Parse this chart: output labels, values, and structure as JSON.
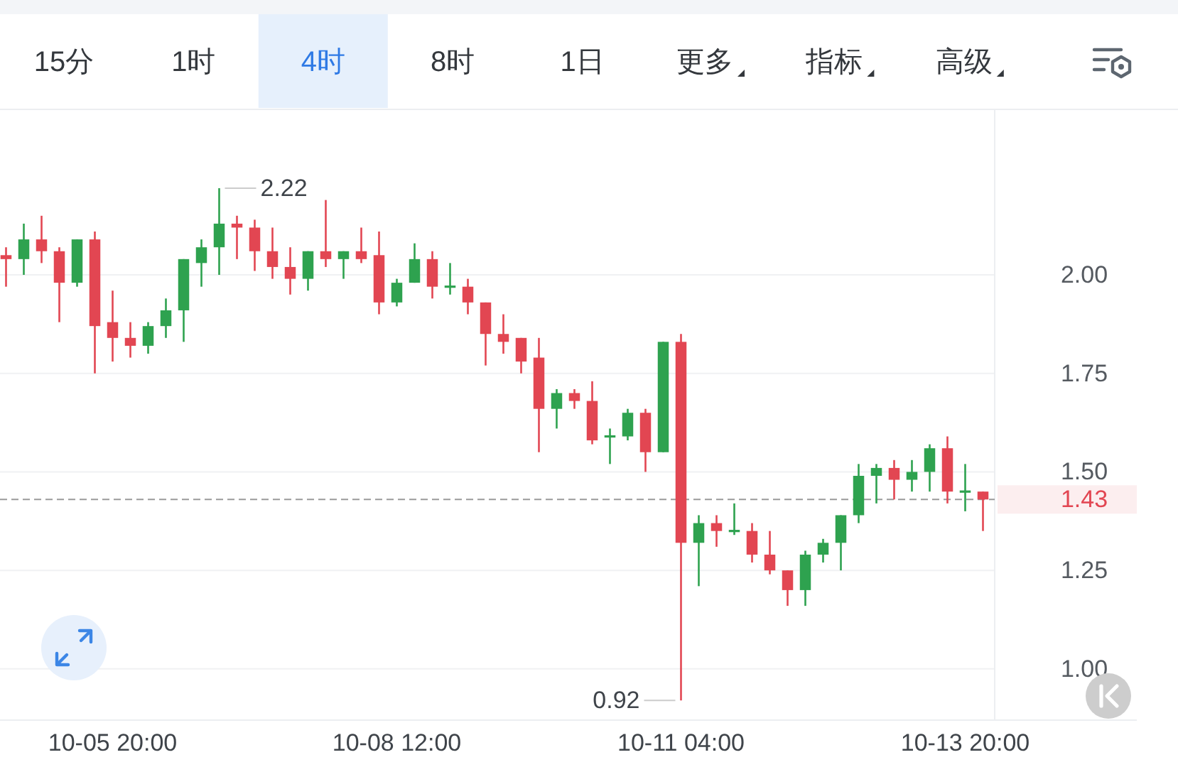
{
  "chart_data": {
    "type": "candlestick",
    "annotations": [
      "15分",
      "1时",
      "4时",
      "8时",
      "1日",
      "更多",
      "指标",
      "高级",
      "2.22",
      "0.92"
    ],
    "categories": [
      null,
      null,
      null,
      null,
      null,
      null,
      "10-05 20:00",
      null,
      null,
      null,
      null,
      null,
      null,
      null,
      null,
      null,
      null,
      null,
      null,
      null,
      null,
      null,
      "10-08 12:00",
      null,
      null,
      null,
      null,
      null,
      null,
      null,
      null,
      null,
      null,
      null,
      null,
      null,
      null,
      null,
      "10-11 04:00",
      null,
      null,
      null,
      null,
      null,
      null,
      null,
      null,
      null,
      null,
      null,
      null,
      null,
      null,
      null,
      "10-13 20:00",
      null
    ],
    "ohlc": [
      [
        2.05,
        2.07,
        1.97,
        2.04
      ],
      [
        2.04,
        2.13,
        2.0,
        2.09
      ],
      [
        2.09,
        2.15,
        2.03,
        2.06
      ],
      [
        2.06,
        2.07,
        1.88,
        1.98
      ],
      [
        1.98,
        2.09,
        1.97,
        2.09
      ],
      [
        2.09,
        2.11,
        1.75,
        1.87
      ],
      [
        1.88,
        1.96,
        1.78,
        1.84
      ],
      [
        1.84,
        1.88,
        1.79,
        1.82
      ],
      [
        1.82,
        1.88,
        1.8,
        1.87
      ],
      [
        1.87,
        1.94,
        1.84,
        1.91
      ],
      [
        1.91,
        2.04,
        1.83,
        2.04
      ],
      [
        2.03,
        2.09,
        1.97,
        2.07
      ],
      [
        2.07,
        2.22,
        2.0,
        2.13
      ],
      [
        2.13,
        2.15,
        2.04,
        2.12
      ],
      [
        2.12,
        2.14,
        2.01,
        2.06
      ],
      [
        2.06,
        2.12,
        1.99,
        2.02
      ],
      [
        2.02,
        2.07,
        1.95,
        1.99
      ],
      [
        1.99,
        2.06,
        1.96,
        2.06
      ],
      [
        2.06,
        2.19,
        2.02,
        2.04
      ],
      [
        2.04,
        2.06,
        1.99,
        2.06
      ],
      [
        2.06,
        2.12,
        2.03,
        2.04
      ],
      [
        2.05,
        2.11,
        1.9,
        1.93
      ],
      [
        1.93,
        1.99,
        1.92,
        1.98
      ],
      [
        1.98,
        2.08,
        1.98,
        2.04
      ],
      [
        2.04,
        2.06,
        1.94,
        1.97
      ],
      [
        1.97,
        2.03,
        1.95,
        1.97
      ],
      [
        1.97,
        1.99,
        1.9,
        1.93
      ],
      [
        1.93,
        1.93,
        1.77,
        1.85
      ],
      [
        1.85,
        1.9,
        1.8,
        1.83
      ],
      [
        1.84,
        1.84,
        1.75,
        1.78
      ],
      [
        1.79,
        1.84,
        1.55,
        1.66
      ],
      [
        1.66,
        1.71,
        1.61,
        1.7
      ],
      [
        1.7,
        1.71,
        1.66,
        1.68
      ],
      [
        1.68,
        1.73,
        1.57,
        1.58
      ],
      [
        1.59,
        1.61,
        1.52,
        1.59
      ],
      [
        1.59,
        1.66,
        1.58,
        1.65
      ],
      [
        1.65,
        1.66,
        1.5,
        1.55
      ],
      [
        1.55,
        1.83,
        1.55,
        1.83
      ],
      [
        1.83,
        1.85,
        0.92,
        1.32
      ],
      [
        1.32,
        1.39,
        1.21,
        1.37
      ],
      [
        1.37,
        1.39,
        1.31,
        1.35
      ],
      [
        1.35,
        1.42,
        1.34,
        1.35
      ],
      [
        1.35,
        1.37,
        1.27,
        1.29
      ],
      [
        1.29,
        1.35,
        1.24,
        1.25
      ],
      [
        1.25,
        1.25,
        1.16,
        1.2
      ],
      [
        1.2,
        1.3,
        1.16,
        1.29
      ],
      [
        1.29,
        1.33,
        1.27,
        1.32
      ],
      [
        1.32,
        1.39,
        1.25,
        1.39
      ],
      [
        1.39,
        1.52,
        1.37,
        1.49
      ],
      [
        1.49,
        1.52,
        1.42,
        1.51
      ],
      [
        1.51,
        1.53,
        1.43,
        1.48
      ],
      [
        1.48,
        1.53,
        1.45,
        1.5
      ],
      [
        1.5,
        1.57,
        1.45,
        1.56
      ],
      [
        1.56,
        1.59,
        1.42,
        1.45
      ],
      [
        1.45,
        1.52,
        1.4,
        1.45
      ],
      [
        1.45,
        1.45,
        1.35,
        1.43
      ]
    ],
    "colors": [
      "#e24652",
      "#2ea24f",
      "#e24652",
      "#e24652",
      "#2ea24f",
      "#e24652",
      "#e24652",
      "#e24652",
      "#2ea24f",
      "#2ea24f",
      "#2ea24f",
      "#2ea24f",
      "#2ea24f",
      "#e24652",
      "#e24652",
      "#e24652",
      "#e24652",
      "#2ea24f",
      "#e24652",
      "#2ea24f",
      "#e24652",
      "#e24652",
      "#2ea24f",
      "#2ea24f",
      "#e24652",
      "#2ea24f",
      "#e24652",
      "#e24652",
      "#e24652",
      "#e24652",
      "#e24652",
      "#2ea24f",
      "#e24652",
      "#e24652",
      "#2ea24f",
      "#2ea24f",
      "#e24652",
      "#2ea24f",
      "#e24652",
      "#2ea24f",
      "#e24652",
      "#2ea24f",
      "#e24652",
      "#e24652",
      "#e24652",
      "#2ea24f",
      "#2ea24f",
      "#2ea24f",
      "#2ea24f",
      "#2ea24f",
      "#e24652",
      "#2ea24f",
      "#2ea24f",
      "#e24652",
      "#2ea24f",
      "#e24652"
    ],
    "ylim": [
      0.87,
      2.42
    ],
    "yticks": [
      {
        "value": 1,
        "label": "1.00"
      },
      {
        "value": 1.25,
        "label": "1.25"
      },
      {
        "value": 1.5,
        "label": "1.50"
      },
      {
        "value": 1.75,
        "label": "1.75"
      },
      {
        "value": 2,
        "label": "2.00"
      }
    ],
    "grid": "y",
    "ref_lines": [
      {
        "axis": "y",
        "value": 1.43,
        "label": "1.43",
        "color": "#9a9a9a",
        "line_style": "dashed"
      }
    ]
  }
}
